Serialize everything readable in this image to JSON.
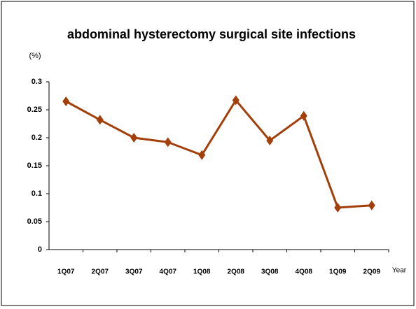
{
  "chart_data": {
    "type": "line",
    "title": "abdominal hysterectomy surgical site infections",
    "y_label": "(%)",
    "x_label": "Year",
    "categories": [
      "1Q07",
      "2Q07",
      "3Q07",
      "4Q07",
      "1Q08",
      "2Q08",
      "3Q08",
      "4Q08",
      "1Q09",
      "2Q09"
    ],
    "series": [
      {
        "name": "abdominal hysterectomy surgical site infections",
        "color": "#a33f0b",
        "values": [
          0.265,
          0.232,
          0.2,
          0.192,
          0.169,
          0.267,
          0.195,
          0.239,
          0.075,
          0.079
        ]
      }
    ],
    "ylim": [
      0,
      0.3
    ],
    "yticks": [
      0,
      0.05,
      0.1,
      0.15,
      0.2,
      0.25,
      0.3
    ],
    "grid": false
  }
}
